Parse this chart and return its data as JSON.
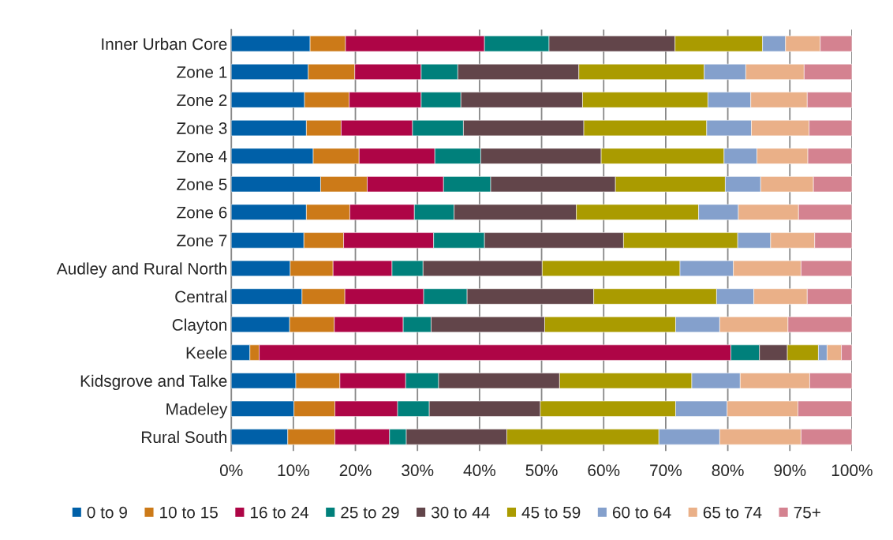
{
  "chart_data": {
    "type": "bar",
    "orientation": "horizontal",
    "stacked": true,
    "categories": [
      "Inner Urban Core",
      "Zone 1",
      "Zone 2",
      "Zone 3",
      "Zone 4",
      "Zone 5",
      "Zone 6",
      "Zone 7",
      "Audley and Rural North",
      "Central",
      "Clayton",
      "Keele",
      "Kidsgrove and Talke",
      "Madeley",
      "Rural South"
    ],
    "series": [
      {
        "name": "0 to 9",
        "color": "#0060a8",
        "values": [
          12.7,
          12.4,
          11.8,
          12.1,
          13.2,
          14.4,
          12.1,
          11.7,
          9.5,
          11.4,
          9.4,
          3.0,
          10.4,
          10.1,
          9.1
        ]
      },
      {
        "name": "10 to 15",
        "color": "#cc7a18",
        "values": [
          5.7,
          7.5,
          7.2,
          5.6,
          7.4,
          7.5,
          7.0,
          6.4,
          6.9,
          6.9,
          7.2,
          1.5,
          7.1,
          6.6,
          7.6
        ]
      },
      {
        "name": "16 to 24",
        "color": "#ae0546",
        "values": [
          22.4,
          10.7,
          11.6,
          11.5,
          12.2,
          12.3,
          10.4,
          14.5,
          9.5,
          12.7,
          11.1,
          76.0,
          10.6,
          10.1,
          8.8
        ]
      },
      {
        "name": "25 to 29",
        "color": "#00807b",
        "values": [
          10.4,
          5.9,
          6.4,
          8.2,
          7.4,
          7.6,
          6.4,
          8.2,
          5.0,
          7.0,
          4.5,
          4.6,
          5.3,
          5.1,
          2.7
        ]
      },
      {
        "name": "30 to 44",
        "color": "#62454a",
        "values": [
          20.3,
          19.5,
          19.6,
          19.4,
          19.4,
          20.1,
          19.7,
          22.4,
          19.2,
          20.4,
          18.3,
          4.5,
          19.5,
          17.9,
          16.2
        ]
      },
      {
        "name": "45 to 59",
        "color": "#aa9b00",
        "values": [
          14.1,
          20.2,
          20.2,
          19.8,
          19.8,
          17.7,
          19.7,
          18.4,
          22.2,
          19.8,
          21.1,
          5.0,
          21.3,
          21.8,
          24.5
        ]
      },
      {
        "name": "60 to 64",
        "color": "#84a0cc",
        "values": [
          3.7,
          6.7,
          6.9,
          7.2,
          5.3,
          5.7,
          6.4,
          5.3,
          8.6,
          6.0,
          7.1,
          1.4,
          7.8,
          8.3,
          9.8
        ]
      },
      {
        "name": "65 to 74",
        "color": "#eab088",
        "values": [
          5.6,
          9.4,
          9.1,
          9.3,
          8.2,
          8.5,
          9.7,
          7.1,
          10.9,
          8.6,
          11.0,
          2.3,
          11.2,
          11.4,
          13.1
        ]
      },
      {
        "name": "75+",
        "color": "#d48290",
        "values": [
          5.1,
          7.7,
          7.2,
          6.9,
          7.1,
          6.2,
          8.6,
          6.0,
          8.2,
          7.2,
          10.3,
          1.7,
          6.8,
          8.7,
          8.2
        ]
      }
    ],
    "xlim": [
      0,
      100
    ],
    "xticks": [
      {
        "value": 0,
        "label": "0%"
      },
      {
        "value": 10,
        "label": "10%"
      },
      {
        "value": 20,
        "label": "20%"
      },
      {
        "value": 30,
        "label": "30%"
      },
      {
        "value": 40,
        "label": "40%"
      },
      {
        "value": 50,
        "label": "50%"
      },
      {
        "value": 60,
        "label": "60%"
      },
      {
        "value": 70,
        "label": "70%"
      },
      {
        "value": 80,
        "label": "80%"
      },
      {
        "value": 90,
        "label": "90%"
      },
      {
        "value": 100,
        "label": "100%"
      }
    ],
    "grid": "x",
    "legend": "bottom"
  }
}
